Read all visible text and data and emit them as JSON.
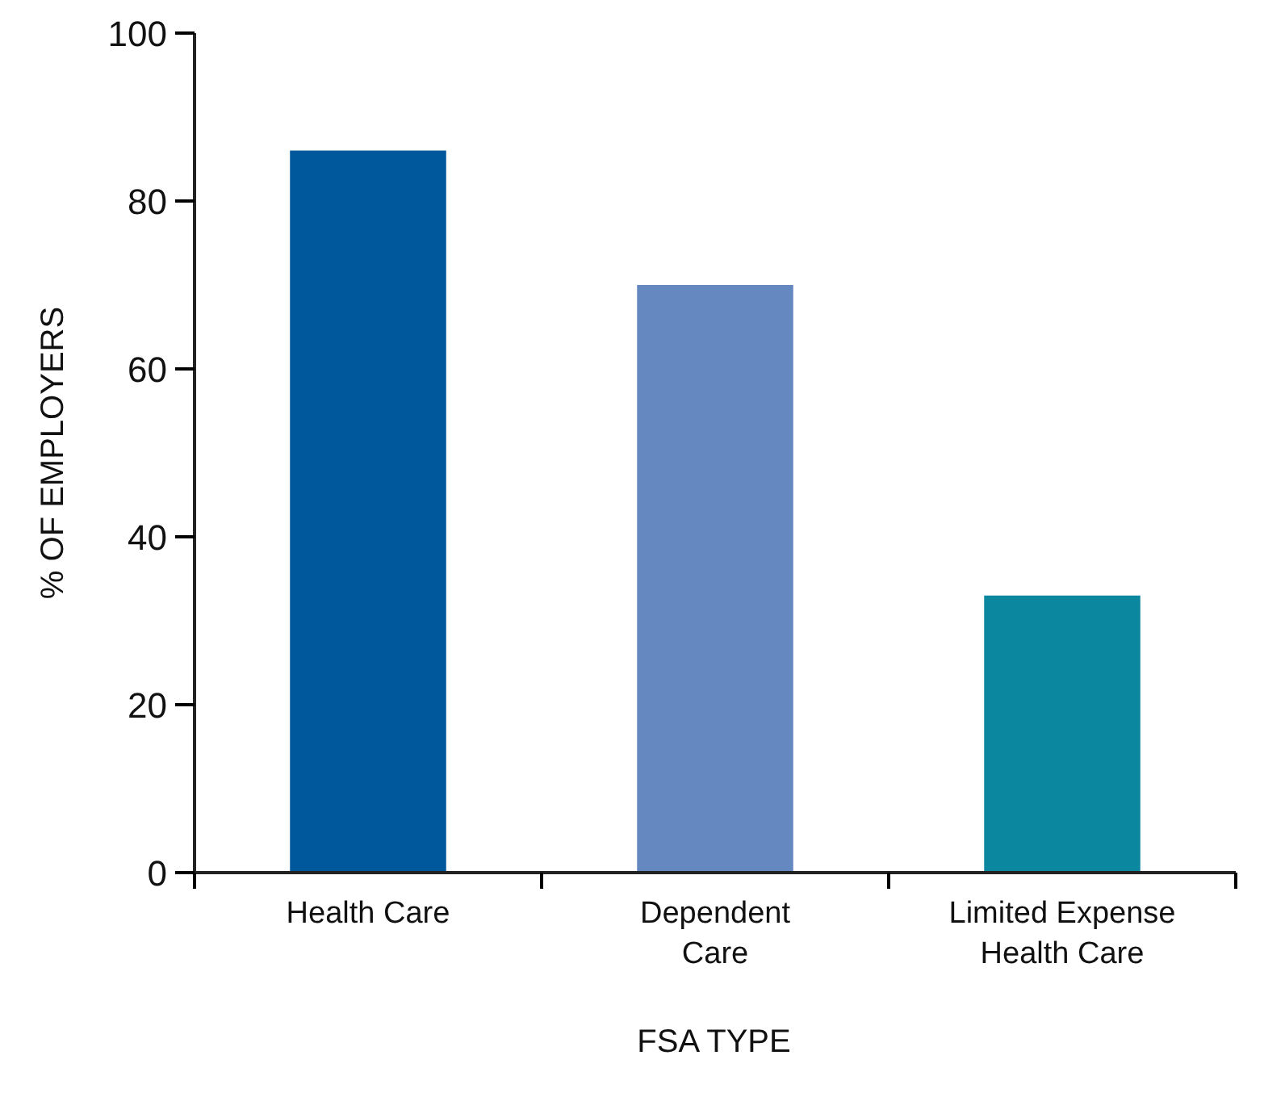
{
  "chart_data": {
    "type": "bar",
    "xlabel": "FSA TYPE",
    "ylabel": "% OF EMPLOYERS",
    "categories": [
      "Health Care",
      "Dependent\nCare",
      "Limited Expense\nHealth Care"
    ],
    "values": [
      86,
      70,
      33
    ],
    "colors": [
      "#00589c",
      "#6688c0",
      "#0b879f"
    ],
    "ylim": [
      0,
      100
    ],
    "yticks": [
      0,
      20,
      40,
      60,
      80,
      100
    ],
    "grid": false
  }
}
